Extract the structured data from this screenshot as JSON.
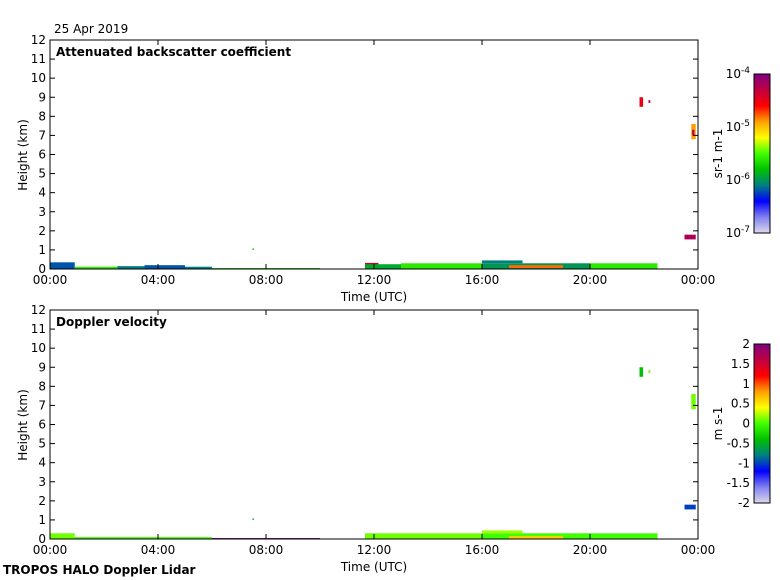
{
  "date": "25 Apr 2019",
  "footer": "TROPOS HALO Doppler Lidar",
  "colormap": [
    "#dcd8ec",
    "#8080f0",
    "#0000ff",
    "#008080",
    "#00c000",
    "#40ff00",
    "#ffff00",
    "#ffa000",
    "#ff0000",
    "#c00040",
    "#800080"
  ],
  "chart_data": [
    {
      "type": "heatmap",
      "title": "Attenuated backscatter coefficient",
      "xlabel": "Time (UTC)",
      "ylabel": "Height (km)",
      "xlim": [
        "00:00",
        "24:00"
      ],
      "xticks": [
        "00:00",
        "04:00",
        "08:00",
        "12:00",
        "16:00",
        "20:00",
        "00:00"
      ],
      "ylim": [
        0,
        12
      ],
      "yticks": [
        "0",
        "1",
        "2",
        "3",
        "4",
        "5",
        "6",
        "7",
        "8",
        "9",
        "10",
        "11",
        "12"
      ],
      "colorbar": {
        "label": "sr-1 m-1",
        "scale": "log",
        "range": [
          -7,
          -4
        ],
        "ticks": [
          "10-7",
          "10-6",
          "10-5",
          "10-4"
        ]
      },
      "segments": [
        [
          "00:00",
          "00:55",
          0,
          0.35,
          -6.2
        ],
        [
          "00:55",
          "02:30",
          0,
          0.12,
          -5.6
        ],
        [
          "02:30",
          "03:30",
          0,
          0.15,
          -6.1
        ],
        [
          "03:30",
          "05:00",
          0,
          0.2,
          -6.2
        ],
        [
          "05:00",
          "06:00",
          0,
          0.12,
          -6.1
        ],
        [
          "06:00",
          "10:00",
          0,
          0.05,
          -5.7
        ],
        [
          "07:30",
          "07:33",
          1.0,
          1.08,
          -5.8
        ],
        [
          "11:40",
          "12:10",
          0.1,
          0.32,
          -4.3
        ],
        [
          "11:40",
          "13:00",
          0,
          0.25,
          -5.9
        ],
        [
          "13:00",
          "16:00",
          0,
          0.3,
          -5.6
        ],
        [
          "16:00",
          "17:30",
          0.3,
          0.45,
          -6.1
        ],
        [
          "16:00",
          "20:00",
          0,
          0.3,
          -6.0
        ],
        [
          "17:00",
          "19:00",
          0.05,
          0.2,
          -4.8
        ],
        [
          "20:00",
          "22:30",
          0,
          0.3,
          -5.6
        ],
        [
          "21:50",
          "21:58",
          8.5,
          9.0,
          -4.5
        ],
        [
          "22:10",
          "22:14",
          8.7,
          8.85,
          -4.4
        ],
        [
          "23:30",
          "23:55",
          1.55,
          1.8,
          -4.2
        ],
        [
          "23:45",
          "23:55",
          6.8,
          7.6,
          -4.9
        ],
        [
          "23:47",
          "23:52",
          7.0,
          7.3,
          -4.3
        ]
      ]
    },
    {
      "type": "heatmap",
      "title": "Doppler velocity",
      "xlabel": "Time (UTC)",
      "ylabel": "Height (km)",
      "xlim": [
        "00:00",
        "24:00"
      ],
      "xticks": [
        "00:00",
        "04:00",
        "08:00",
        "12:00",
        "16:00",
        "20:00",
        "00:00"
      ],
      "ylim": [
        0,
        12
      ],
      "yticks": [
        "0",
        "1",
        "2",
        "3",
        "4",
        "5",
        "6",
        "7",
        "8",
        "9",
        "10",
        "11",
        "12"
      ],
      "colorbar": {
        "label": "m s-1",
        "scale": "linear",
        "range": [
          -2,
          2
        ],
        "ticks": [
          "-2",
          "-1.5",
          "-1",
          "-0.5",
          "0",
          "0.5",
          "1",
          "1.5",
          "2"
        ]
      },
      "segments": [
        [
          "00:00",
          "00:55",
          0,
          0.3,
          0.1
        ],
        [
          "00:55",
          "06:00",
          0,
          0.1,
          0.0
        ],
        [
          "06:00",
          "10:00",
          0,
          0.05,
          2.0
        ],
        [
          "07:30",
          "07:33",
          1.0,
          1.08,
          -0.6
        ],
        [
          "11:40",
          "16:00",
          0,
          0.3,
          0.1
        ],
        [
          "16:00",
          "17:30",
          0.3,
          0.45,
          0.2
        ],
        [
          "16:00",
          "22:30",
          0,
          0.3,
          0.0
        ],
        [
          "17:00",
          "19:00",
          0,
          0.15,
          0.6
        ],
        [
          "21:50",
          "21:58",
          8.5,
          9.0,
          -0.4
        ],
        [
          "22:10",
          "22:14",
          8.7,
          8.85,
          0.1
        ],
        [
          "23:30",
          "23:55",
          1.55,
          1.8,
          -1.0
        ],
        [
          "23:45",
          "23:55",
          6.8,
          7.6,
          0.1
        ]
      ]
    }
  ]
}
